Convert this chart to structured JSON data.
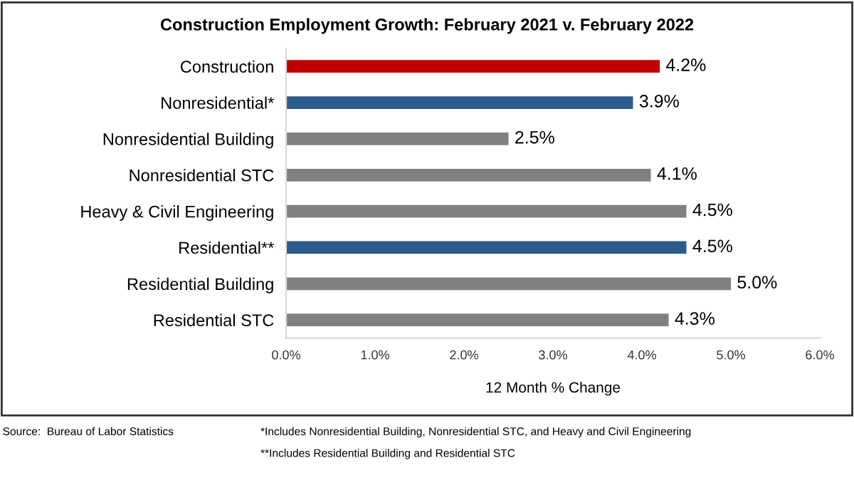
{
  "chart_data": {
    "type": "bar",
    "orientation": "horizontal",
    "title": "Construction Employment Growth: February 2021 v. February 2022",
    "xlabel": "12 Month % Change",
    "categories": [
      "Construction",
      "Nonresidential*",
      "Nonresidential Building",
      "Nonresidential STC",
      "Heavy & Civil Engineering",
      "Residential**",
      "Residential Building",
      "Residential STC"
    ],
    "values": [
      4.2,
      3.9,
      2.5,
      4.1,
      4.5,
      4.5,
      5.0,
      4.3
    ],
    "value_labels": [
      "4.2%",
      "3.9%",
      "2.5%",
      "4.1%",
      "4.5%",
      "4.5%",
      "5.0%",
      "4.3%"
    ],
    "colors": [
      "#c00000",
      "#2e5b8e",
      "#808080",
      "#808080",
      "#808080",
      "#2e5b8e",
      "#808080",
      "#808080"
    ],
    "xlim": [
      0,
      6
    ],
    "xticks": [
      {
        "value": 0,
        "label": "0.0%"
      },
      {
        "value": 1,
        "label": "1.0%"
      },
      {
        "value": 2,
        "label": "2.0%"
      },
      {
        "value": 3,
        "label": "3.0%"
      },
      {
        "value": 4,
        "label": "4.0%"
      },
      {
        "value": 5,
        "label": "5.0%"
      },
      {
        "value": 6,
        "label": "6.0%"
      }
    ],
    "grid": false,
    "annotations": [
      "Source:  Bureau of Labor Statistics",
      "*Includes Nonresidential Building, Nonresidential STC, and Heavy and Civil Engineering",
      "**Includes Residential Building and Residential STC"
    ]
  }
}
